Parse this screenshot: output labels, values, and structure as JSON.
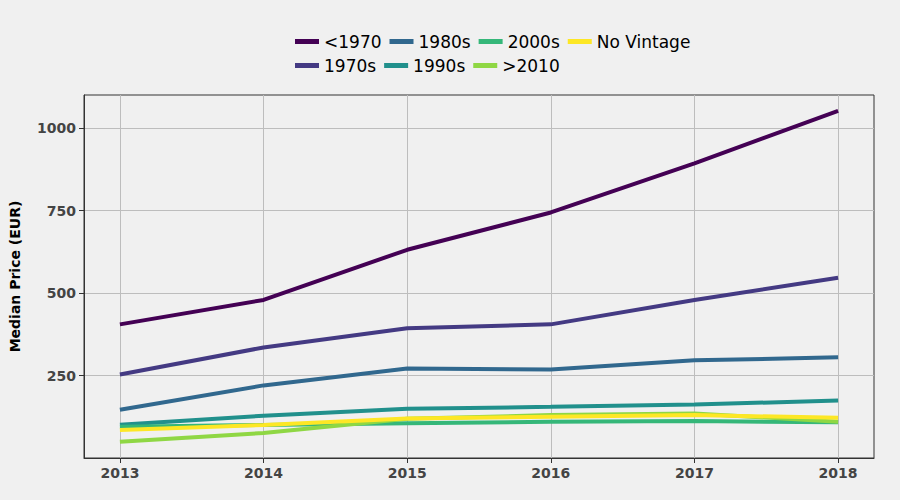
{
  "chart_data": {
    "type": "line",
    "y_label": "Median Price (EUR)",
    "x": [
      2013,
      2014,
      2015,
      2016,
      2017,
      2018
    ],
    "xlim": [
      2012.75,
      2018.25
    ],
    "xticks": [
      2013,
      2014,
      2015,
      2016,
      2017,
      2018
    ],
    "ylim": [
      0,
      1100
    ],
    "yticks": [
      250,
      500,
      750,
      1000
    ],
    "grid": true,
    "legend": "top",
    "series": [
      {
        "name": "<1970",
        "color": "#440154",
        "values": [
          405,
          479,
          631,
          744,
          893,
          1052
        ]
      },
      {
        "name": "1970s",
        "color": "#443A83",
        "values": [
          253,
          335,
          393,
          405,
          479,
          546
        ]
      },
      {
        "name": "1980s",
        "color": "#31688E",
        "values": [
          146,
          220,
          271,
          268,
          296,
          305
        ]
      },
      {
        "name": "1990s",
        "color": "#21908C",
        "values": [
          101,
          128,
          149,
          155,
          162,
          174
        ]
      },
      {
        "name": "2000s",
        "color": "#35B779",
        "values": [
          95,
          100,
          105,
          110,
          112,
          108
        ]
      },
      {
        "name": ">2010",
        "color": "#8FD744",
        "values": [
          49,
          76,
          119,
          130,
          135,
          110
        ]
      },
      {
        "name": "No Vintage",
        "color": "#FDE725",
        "values": [
          85,
          100,
          120,
          125,
          130,
          122
        ]
      }
    ]
  }
}
